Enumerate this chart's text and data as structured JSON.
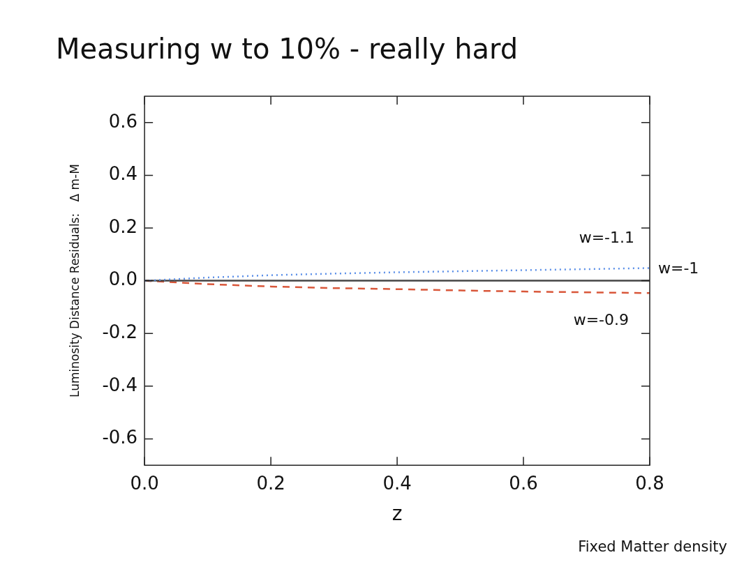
{
  "chart_data": {
    "type": "line",
    "title": "Measuring w to 10% - really hard",
    "xlabel": "z",
    "ylabel": "Luminosity Distance Residuals:   Δ m-M",
    "x": [
      0,
      0.1,
      0.2,
      0.3,
      0.4,
      0.5,
      0.6,
      0.7,
      0.8
    ],
    "series": [
      {
        "name": "w=-1.1",
        "color": "#5b8fe8",
        "line_style": "dotted",
        "values": [
          0,
          0.012,
          0.021,
          0.027,
          0.032,
          0.036,
          0.04,
          0.044,
          0.048
        ]
      },
      {
        "name": "w=-1",
        "color": "#444444",
        "line_style": "solid",
        "values": [
          0,
          0,
          0,
          0,
          0,
          0,
          0,
          0,
          0
        ]
      },
      {
        "name": "w=-0.9",
        "color": "#d9573a",
        "line_style": "dashed",
        "values": [
          0,
          -0.013,
          -0.022,
          -0.028,
          -0.032,
          -0.037,
          -0.041,
          -0.044,
          -0.047
        ]
      }
    ],
    "xlim": [
      0,
      0.8
    ],
    "xticks": [
      {
        "value": 0,
        "label": "0.0"
      },
      0.2,
      0.4,
      0.6,
      0.8
    ],
    "ylim": [
      -0.7,
      0.7
    ],
    "yticks": [
      -0.6,
      -0.4,
      -0.2,
      {
        "value": 0,
        "label": "0.0"
      },
      0.2,
      0.4,
      0.6
    ],
    "grid": false,
    "marker": "none",
    "legend": false,
    "annotations": [
      "Fixed Matter density"
    ]
  }
}
